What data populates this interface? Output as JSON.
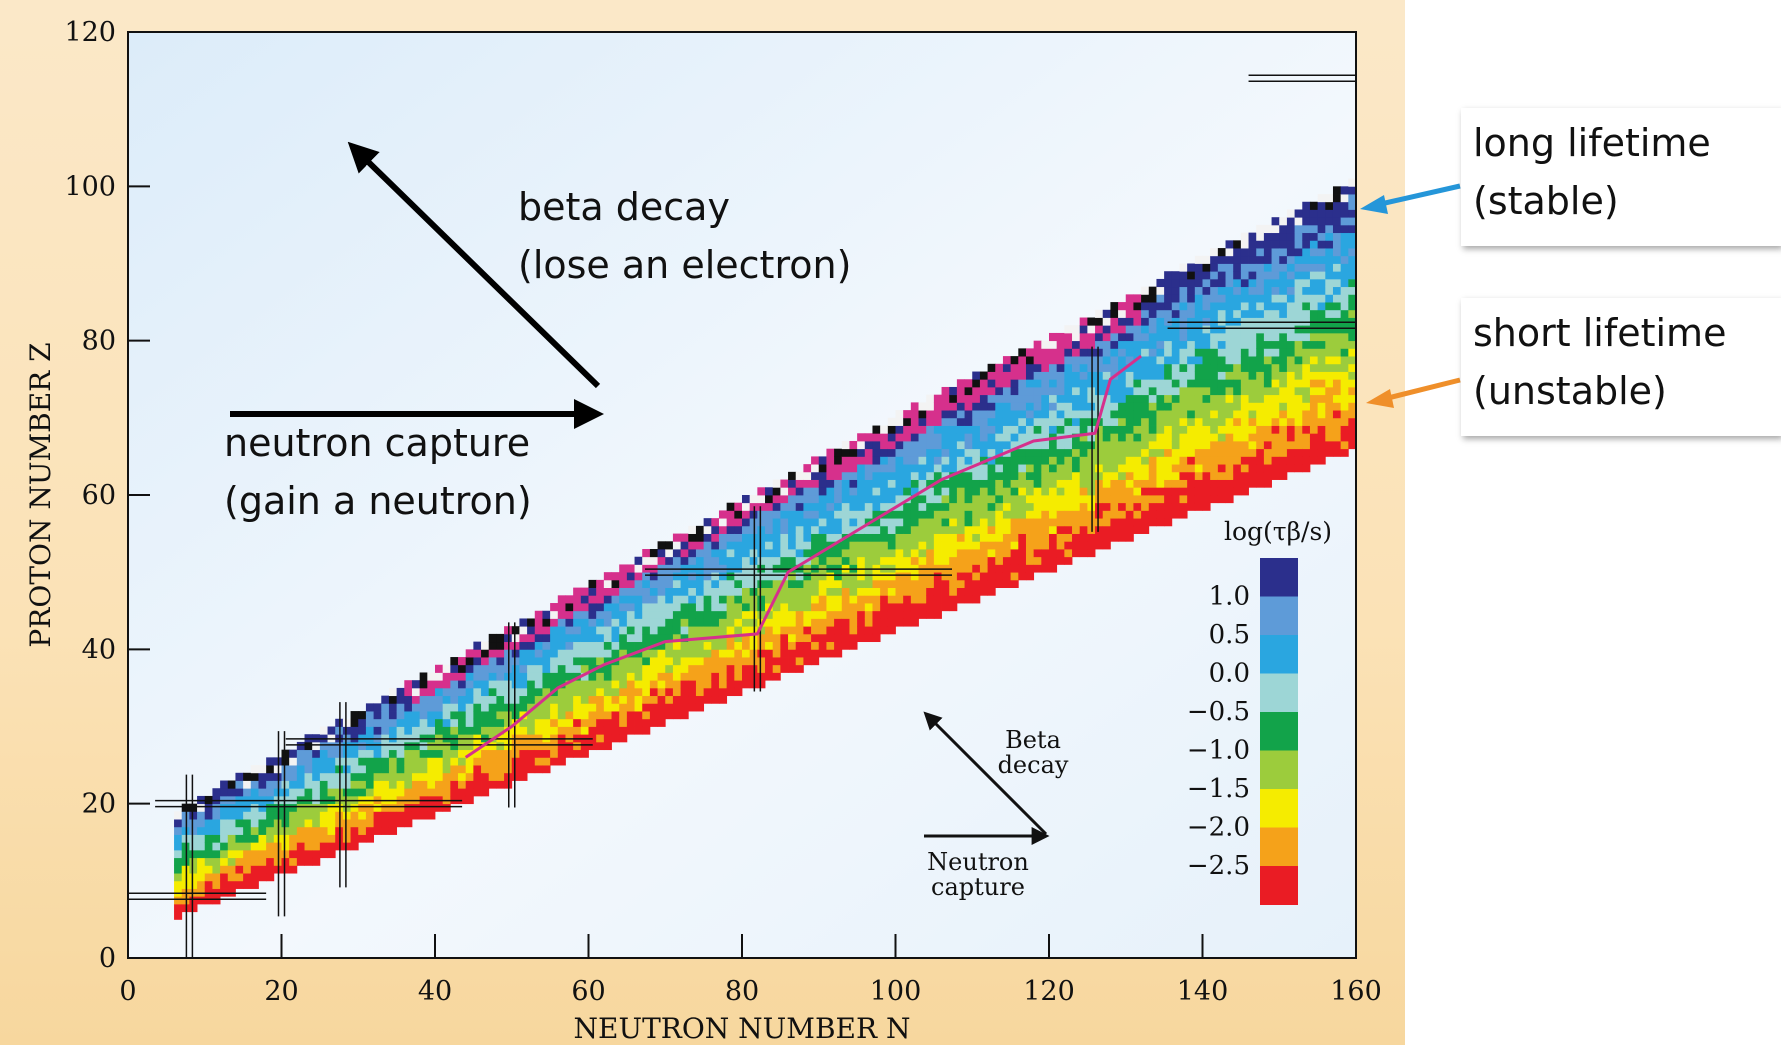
{
  "chart_data": {
    "type": "heatmap",
    "xlabel": "NEUTRON NUMBER N",
    "ylabel": "PROTON NUMBER Z",
    "xlim": [
      0,
      160
    ],
    "ylim": [
      0,
      120
    ],
    "xticks": [
      0,
      20,
      40,
      60,
      80,
      100,
      120,
      140,
      160
    ],
    "yticks": [
      0,
      20,
      40,
      60,
      80,
      100,
      120
    ],
    "colorbar": {
      "title": "log(τβ/s)",
      "labels": [
        "1.0",
        "0.5",
        "0.0",
        "−0.5",
        "−1.0",
        "−1.5",
        "−2.0",
        "−2.5"
      ],
      "colors": [
        "#2b2f8c",
        "#5e9bd8",
        "#2aa6e0",
        "#9dd6d6",
        "#12a34a",
        "#9ccc3c",
        "#f5ec00",
        "#f5a21a",
        "#ea1c24"
      ]
    },
    "magic_numbers": [
      8,
      20,
      28,
      50,
      82,
      126
    ],
    "r_process_path": [
      [
        44,
        26
      ],
      [
        50,
        30
      ],
      [
        56,
        35
      ],
      [
        62,
        38
      ],
      [
        70,
        41
      ],
      [
        82,
        42
      ],
      [
        86,
        50
      ],
      [
        96,
        56
      ],
      [
        106,
        62
      ],
      [
        118,
        67
      ],
      [
        126,
        68
      ],
      [
        128,
        75
      ],
      [
        132,
        78
      ]
    ],
    "inset_arrows": {
      "beta_label": [
        "Beta",
        "decay"
      ],
      "neutron_label": [
        "Neutron",
        "capture"
      ]
    }
  },
  "annotations": {
    "beta_decay": [
      "beta decay",
      "(lose an electron)"
    ],
    "neutron_capture": [
      "neutron capture",
      "(gain a neutron)"
    ]
  },
  "callouts": {
    "long": [
      "long lifetime",
      "(stable)"
    ],
    "short": [
      "short lifetime",
      "(unstable)"
    ],
    "long_arrow_color": "#2596d9",
    "short_arrow_color": "#ef8f2a"
  }
}
